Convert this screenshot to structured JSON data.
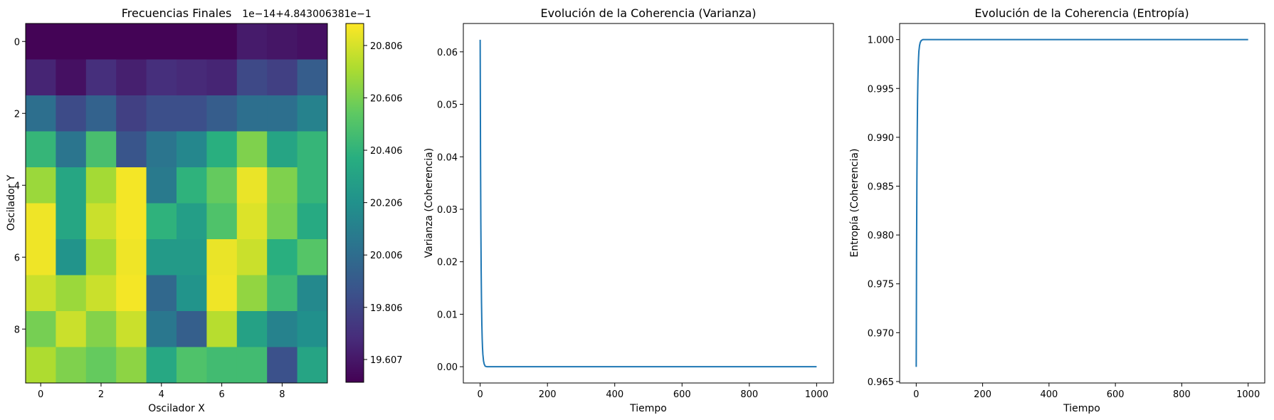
{
  "chart_data": [
    {
      "type": "heatmap",
      "title": "Frecuencias Finales",
      "xlabel": "Oscilador X",
      "ylabel": "Oscilador Y",
      "x_ticks": [
        "0",
        "2",
        "4",
        "6",
        "8"
      ],
      "y_ticks": [
        "0",
        "2",
        "4",
        "6",
        "8"
      ],
      "colormap": "viridis",
      "colorbar": {
        "offset_label": "1e−14+4.843006381e−1",
        "ticks": [
          19.607,
          19.806,
          20.006,
          20.206,
          20.406,
          20.606,
          20.806
        ],
        "tick_labels": [
          "19.607",
          "19.806",
          "20.006",
          "20.206",
          "20.406",
          "20.606",
          "20.806"
        ],
        "vmin": 19.52,
        "vmax": 20.89
      },
      "matrix": [
        [
          19.53,
          19.53,
          19.53,
          19.53,
          19.53,
          19.53,
          19.53,
          19.62,
          19.6,
          19.58
        ],
        [
          19.66,
          19.58,
          19.7,
          19.64,
          19.7,
          19.68,
          19.66,
          19.82,
          19.78,
          19.92
        ],
        [
          20.02,
          19.83,
          19.95,
          19.78,
          19.85,
          19.85,
          19.92,
          20.02,
          20.02,
          20.12
        ],
        [
          20.42,
          20.05,
          20.48,
          19.88,
          20.05,
          20.15,
          20.38,
          20.62,
          20.32,
          20.42
        ],
        [
          20.68,
          20.33,
          20.7,
          20.87,
          20.08,
          20.4,
          20.56,
          20.85,
          20.62,
          20.42
        ],
        [
          20.86,
          20.33,
          20.78,
          20.87,
          20.4,
          20.28,
          20.5,
          20.82,
          20.6,
          20.35
        ],
        [
          20.86,
          20.22,
          20.7,
          20.86,
          20.26,
          20.26,
          20.85,
          20.78,
          20.38,
          20.52
        ],
        [
          20.78,
          20.68,
          20.78,
          20.87,
          19.98,
          20.22,
          20.86,
          20.66,
          20.45,
          20.16
        ],
        [
          20.6,
          20.78,
          20.63,
          20.78,
          20.06,
          19.93,
          20.74,
          20.3,
          20.12,
          20.2
        ],
        [
          20.72,
          20.62,
          20.56,
          20.65,
          20.34,
          20.5,
          20.46,
          20.46,
          19.86,
          20.32
        ]
      ]
    },
    {
      "type": "line",
      "title": "Evolución de la Coherencia (Varianza)",
      "xlabel": "Tiempo",
      "ylabel": "Varianza (Coherencia)",
      "xlim": [
        -50,
        1050
      ],
      "ylim": [
        -0.0031,
        0.0654
      ],
      "x_ticks": [
        0,
        200,
        400,
        600,
        800,
        1000
      ],
      "x_tick_labels": [
        "0",
        "200",
        "400",
        "600",
        "800",
        "1000"
      ],
      "y_ticks": [
        0.0,
        0.01,
        0.02,
        0.03,
        0.04,
        0.05,
        0.06
      ],
      "y_tick_labels": [
        "0.00",
        "0.01",
        "0.02",
        "0.03",
        "0.04",
        "0.05",
        "0.06"
      ],
      "color": "#1f77b4",
      "series": [
        {
          "x": [
            0,
            1,
            2,
            3,
            4,
            5,
            6,
            7,
            8,
            10,
            12,
            15,
            20,
            30,
            50,
            100,
            200,
            400,
            600,
            800,
            1000
          ],
          "y": [
            0.0623,
            0.0415,
            0.0276,
            0.0184,
            0.0122,
            0.0081,
            0.0054,
            0.0036,
            0.0024,
            0.0011,
            0.0005,
            0.0001,
            0.0,
            0.0,
            0.0,
            0.0,
            0.0,
            0.0,
            0.0,
            0.0,
            0.0
          ]
        }
      ]
    },
    {
      "type": "line",
      "title": "Evolución de la Coherencia (Entropía)",
      "xlabel": "Tiempo",
      "ylabel": "Entropía (Coherencia)",
      "xlim": [
        -50,
        1050
      ],
      "ylim": [
        0.96485,
        1.00165
      ],
      "x_ticks": [
        0,
        200,
        400,
        600,
        800,
        1000
      ],
      "x_tick_labels": [
        "0",
        "200",
        "400",
        "600",
        "800",
        "1000"
      ],
      "y_ticks": [
        0.965,
        0.97,
        0.975,
        0.98,
        0.985,
        0.99,
        0.995,
        1.0
      ],
      "y_tick_labels": [
        "0.965",
        "0.970",
        "0.975",
        "0.980",
        "0.985",
        "0.990",
        "0.995",
        "1.000"
      ],
      "color": "#1f77b4",
      "series": [
        {
          "x": [
            0,
            1,
            2,
            3,
            4,
            5,
            6,
            7,
            8,
            10,
            12,
            15,
            20,
            30,
            50,
            100,
            200,
            400,
            600,
            800,
            1000
          ],
          "y": [
            0.9665,
            0.978,
            0.9855,
            0.9905,
            0.9937,
            0.9958,
            0.9972,
            0.9981,
            0.9988,
            0.9994,
            0.9997,
            0.9999,
            1.0,
            1.0,
            1.0,
            1.0,
            1.0,
            1.0,
            1.0,
            1.0,
            1.0
          ]
        }
      ]
    }
  ]
}
